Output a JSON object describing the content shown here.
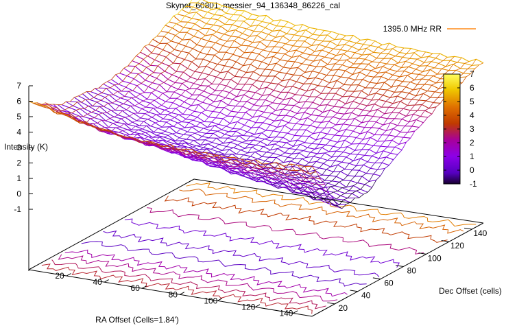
{
  "chart_data": {
    "type": "surface",
    "title": "Skynet_60801_messier_94_136348_86226_cal",
    "xlabel": "RA Offset (Cells=1.84')",
    "ylabel": "Dec Offset (cells)",
    "zlabel": "Intensity (K)",
    "legend": [
      {
        "name": "1395.0 MHz RR",
        "color": "#ff8c1a"
      }
    ],
    "legend_position": "top-right",
    "xlim": [
      0,
      150
    ],
    "ylim": [
      0,
      150
    ],
    "zlim": [
      -2,
      7
    ],
    "x_ticks": [
      "20",
      "40",
      "60",
      "80",
      "100",
      "120",
      "140"
    ],
    "y_ticks": [
      "20",
      "40",
      "60",
      "80",
      "100",
      "120",
      "140"
    ],
    "z_ticks": [
      "-1",
      "0",
      "1",
      "2",
      "3",
      "4",
      "5",
      "6",
      "7"
    ],
    "colorbar": {
      "range": [
        -1,
        7
      ],
      "ticks": [
        "7",
        "6",
        "5",
        "4",
        "3",
        "2",
        "1",
        "0",
        "-1"
      ],
      "colors": [
        "#ffff60",
        "#f0c800",
        "#e07000",
        "#c03a00",
        "#a8009a",
        "#8c00e8",
        "#5500c0",
        "#180030"
      ]
    },
    "surface_samples": {
      "dec_offsets": [
        0,
        25,
        50,
        75,
        100,
        125,
        150
      ],
      "ra_offsets": [
        0,
        25,
        50,
        75,
        100,
        125,
        150
      ],
      "intensity_rows": [
        [
          5.6,
          4.6,
          3.8,
          3.6,
          3.5,
          3.5,
          3.9
        ],
        [
          3.8,
          2.1,
          1.6,
          0.8,
          0.0,
          -0.6,
          -1.4
        ],
        [
          3.5,
          1.8,
          0.7,
          0.2,
          -0.3,
          -0.6,
          -1.1
        ],
        [
          3.4,
          1.9,
          1.0,
          0.6,
          0.5,
          0.6,
          0.8
        ],
        [
          4.4,
          2.9,
          2.4,
          2.2,
          2.2,
          2.4,
          2.6
        ],
        [
          5.7,
          4.9,
          4.4,
          4.2,
          4.1,
          4.0,
          4.0
        ],
        [
          6.8,
          6.2,
          5.8,
          5.5,
          5.2,
          5.0,
          4.9
        ]
      ]
    }
  }
}
